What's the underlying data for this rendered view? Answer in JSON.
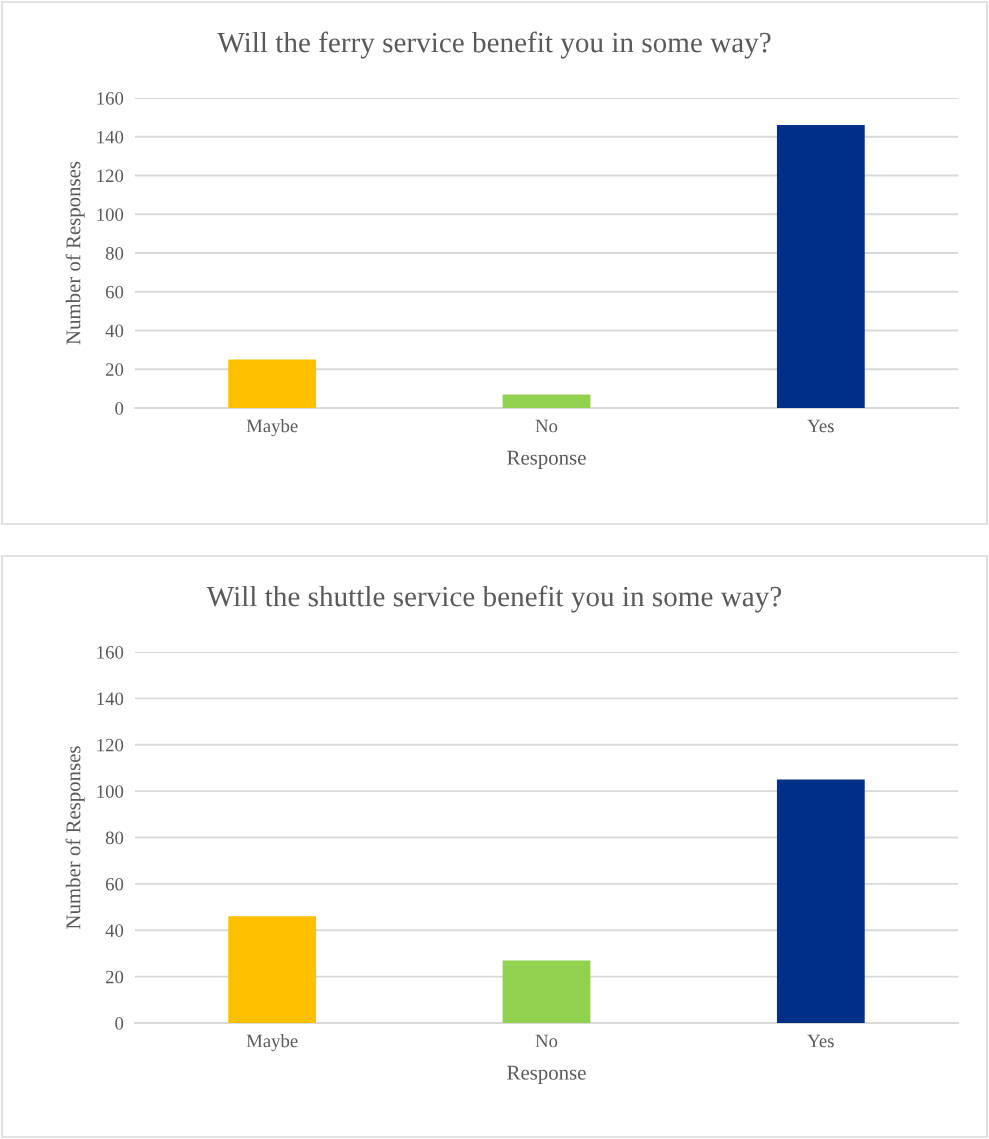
{
  "chart_data": [
    {
      "type": "bar",
      "title": "Will the ferry service benefit you in some way?",
      "xlabel": "Response",
      "ylabel": "Number of Responses",
      "categories": [
        "Maybe",
        "No",
        "Yes"
      ],
      "values": [
        25,
        7,
        146
      ],
      "colors": [
        "#ffc000",
        "#92d050",
        "#002f87"
      ],
      "ylim": [
        0,
        160
      ],
      "yticks": [
        0,
        20,
        40,
        60,
        80,
        100,
        120,
        140,
        160
      ],
      "grid": "y"
    },
    {
      "type": "bar",
      "title": "Will the shuttle service benefit you in some way?",
      "xlabel": "Response",
      "ylabel": "Number of Responses",
      "categories": [
        "Maybe",
        "No",
        "Yes"
      ],
      "values": [
        46,
        27,
        105
      ],
      "colors": [
        "#ffc000",
        "#92d050",
        "#002f87"
      ],
      "ylim": [
        0,
        160
      ],
      "yticks": [
        0,
        20,
        40,
        60,
        80,
        100,
        120,
        140,
        160
      ],
      "grid": "y"
    }
  ]
}
